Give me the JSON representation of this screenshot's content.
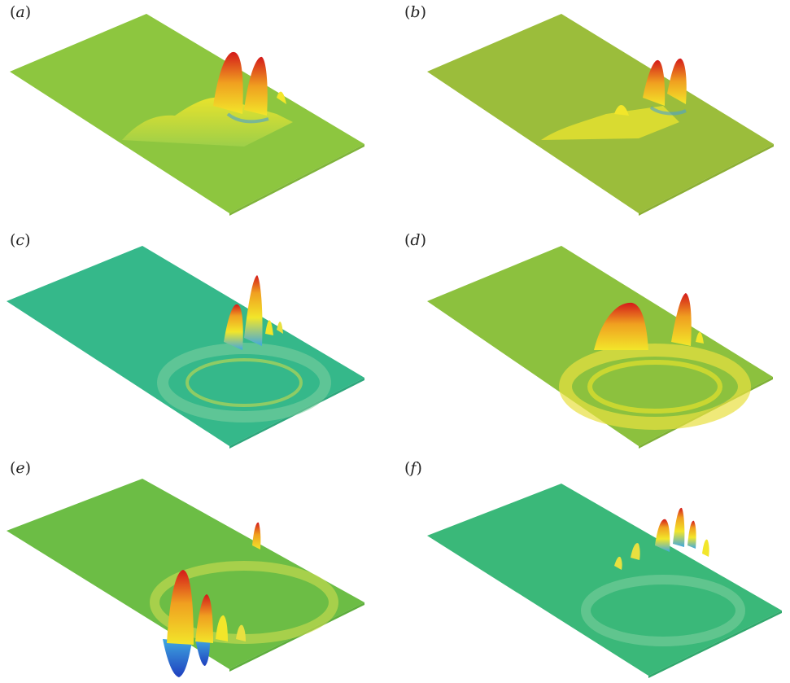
{
  "panels": [
    {
      "id": "a",
      "label": "a",
      "colors": {
        "plane": "#8dc63f",
        "plane_edge": "#7fb43a"
      }
    },
    {
      "id": "b",
      "label": "b",
      "colors": {
        "plane": "#9bbd3b",
        "plane_edge": "#8caf34"
      }
    },
    {
      "id": "c",
      "label": "c",
      "colors": {
        "plane": "#35b88a",
        "plane_edge": "#2ea77c"
      }
    },
    {
      "id": "d",
      "label": "d",
      "colors": {
        "plane": "#8cc13e",
        "plane_edge": "#7fb137"
      }
    },
    {
      "id": "e",
      "label": "e",
      "colors": {
        "plane": "#6cbd45",
        "plane_edge": "#5eae3d"
      }
    },
    {
      "id": "f",
      "label": "f",
      "colors": {
        "plane": "#3ab879",
        "plane_edge": "#31a86d"
      }
    }
  ],
  "colormap": {
    "low": "#1f3fbf",
    "mid_low": "#3fa8e0",
    "mid": "#f2e62a",
    "high": "#f0a020",
    "peak": "#d41a1a"
  }
}
